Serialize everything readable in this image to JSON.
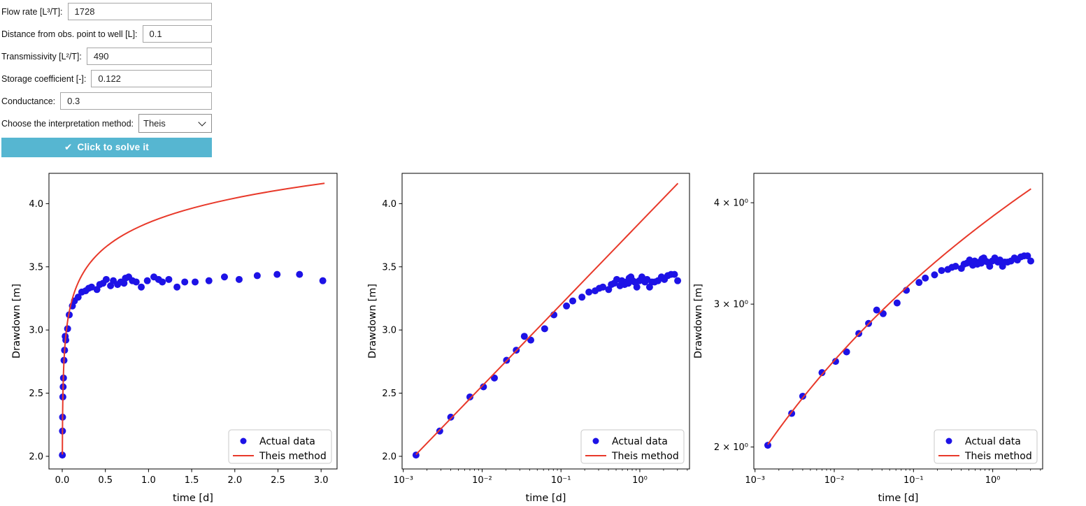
{
  "form": {
    "fields": [
      {
        "label": "Flow rate [L³/T]:",
        "value": "1728"
      },
      {
        "label": "Distance from obs. point to well [L]:",
        "value": "0.1"
      },
      {
        "label": "Transmissivity [L²/T]:",
        "value": "490"
      },
      {
        "label": "Storage coefficient [-]:",
        "value": "0.122"
      },
      {
        "label": "Conductance:",
        "value": "0.3"
      }
    ],
    "method": {
      "label": "Choose the interpretation method:",
      "selected": "Theis"
    },
    "solve_button": {
      "icon": "✔",
      "label": "Click to solve it",
      "color": "#56b6d1"
    }
  },
  "chart_data": {
    "type": "scatter",
    "series": [
      {
        "name": "Actual data",
        "style": "scatter",
        "color": "#1d12e6",
        "points": [
          [
            0.00145,
            2.01
          ],
          [
            0.0029,
            2.2
          ],
          [
            0.004,
            2.31
          ],
          [
            0.007,
            2.47
          ],
          [
            0.0104,
            2.55
          ],
          [
            0.0143,
            2.62
          ],
          [
            0.0204,
            2.76
          ],
          [
            0.0271,
            2.84
          ],
          [
            0.0343,
            2.95
          ],
          [
            0.0414,
            2.92
          ],
          [
            0.0621,
            3.01
          ],
          [
            0.0813,
            3.12
          ],
          [
            0.1175,
            3.19
          ],
          [
            0.141,
            3.23
          ],
          [
            0.1845,
            3.26
          ],
          [
            0.226,
            3.3
          ],
          [
            0.271,
            3.31
          ],
          [
            0.306,
            3.33
          ],
          [
            0.34,
            3.34
          ],
          [
            0.402,
            3.32
          ],
          [
            0.435,
            3.36
          ],
          [
            0.473,
            3.37
          ],
          [
            0.51,
            3.4
          ],
          [
            0.56,
            3.35
          ],
          [
            0.592,
            3.39
          ],
          [
            0.641,
            3.36
          ],
          [
            0.678,
            3.38
          ],
          [
            0.716,
            3.37
          ],
          [
            0.732,
            3.41
          ],
          [
            0.77,
            3.42
          ],
          [
            0.813,
            3.39
          ],
          [
            0.857,
            3.38
          ],
          [
            0.916,
            3.34
          ],
          [
            0.986,
            3.39
          ],
          [
            1.062,
            3.42
          ],
          [
            1.116,
            3.4
          ],
          [
            1.16,
            3.38
          ],
          [
            1.235,
            3.4
          ],
          [
            1.33,
            3.34
          ],
          [
            1.42,
            3.38
          ],
          [
            1.54,
            3.38
          ],
          [
            1.7,
            3.39
          ],
          [
            1.88,
            3.42
          ],
          [
            2.05,
            3.4
          ],
          [
            2.26,
            3.43
          ],
          [
            2.49,
            3.44
          ],
          [
            2.75,
            3.44
          ],
          [
            3.02,
            3.39
          ]
        ]
      },
      {
        "name": "Theis method",
        "style": "line",
        "color": "#e8392a",
        "model": "drawdown = 3.849 + 0.6464 * log10(t)",
        "t_start": 0.00145,
        "t_end": 3.04,
        "intercept_at_1d": 3.849,
        "slope_per_decade": 0.6464
      }
    ],
    "legend": {
      "position": "lower right",
      "entries": [
        "Actual data",
        "Theis method"
      ]
    },
    "charts": [
      {
        "name": "linear",
        "xlabel": "time [d]",
        "ylabel": "Drawdown [m]",
        "xscale": "linear",
        "yscale": "linear",
        "xlim": [
          -0.154,
          3.185
        ],
        "ylim": [
          1.9,
          4.24
        ],
        "xticks": [
          {
            "v": 0.0,
            "label": "0.0"
          },
          {
            "v": 0.5,
            "label": "0.5"
          },
          {
            "v": 1.0,
            "label": "1.0"
          },
          {
            "v": 1.5,
            "label": "1.5"
          },
          {
            "v": 2.0,
            "label": "2.0"
          },
          {
            "v": 2.5,
            "label": "2.5"
          },
          {
            "v": 3.0,
            "label": "3.0"
          }
        ],
        "yticks": [
          {
            "v": 2.0,
            "label": "2.0"
          },
          {
            "v": 2.5,
            "label": "2.5"
          },
          {
            "v": 3.0,
            "label": "3.0"
          },
          {
            "v": 3.5,
            "label": "3.5"
          },
          {
            "v": 4.0,
            "label": "4.0"
          }
        ]
      },
      {
        "name": "semilog",
        "xlabel": "time [d]",
        "ylabel": "Drawdown [m]",
        "xscale": "log",
        "yscale": "linear",
        "xlim_log10": [
          -3.015,
          0.63
        ],
        "ylim": [
          1.9,
          4.24
        ],
        "xticks": [
          {
            "v": 0.001,
            "label": "10⁻³"
          },
          {
            "v": 0.01,
            "label": "10⁻²"
          },
          {
            "v": 0.1,
            "label": "10⁻¹"
          },
          {
            "v": 1.0,
            "label": "10⁰"
          }
        ],
        "yticks": [
          {
            "v": 2.0,
            "label": "2.0"
          },
          {
            "v": 2.5,
            "label": "2.5"
          },
          {
            "v": 3.0,
            "label": "3.0"
          },
          {
            "v": 3.5,
            "label": "3.5"
          },
          {
            "v": 4.0,
            "label": "4.0"
          }
        ]
      },
      {
        "name": "loglog",
        "xlabel": "time [d]",
        "ylabel": "Drawdown [m]",
        "xscale": "log",
        "yscale": "log",
        "xlim_log10": [
          -3.015,
          0.63
        ],
        "ylim_log10": [
          0.274,
          0.6383
        ],
        "xticks": [
          {
            "v": 0.001,
            "label": "10⁻³"
          },
          {
            "v": 0.01,
            "label": "10⁻²"
          },
          {
            "v": 0.1,
            "label": "10⁻¹"
          },
          {
            "v": 1.0,
            "label": "10⁰"
          }
        ],
        "yticks": [
          {
            "v": 2.0,
            "label": "2 × 10⁰"
          },
          {
            "v": 3.0,
            "label": "3 × 10⁰"
          },
          {
            "v": 4.0,
            "label": "4 × 10⁰"
          }
        ]
      }
    ]
  }
}
